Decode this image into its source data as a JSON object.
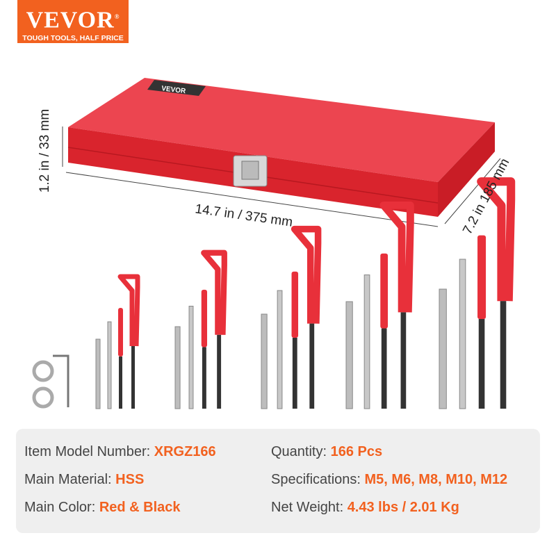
{
  "brand": {
    "name": "VEVOR",
    "registered": "®",
    "tagline": "TOUGH TOOLS, HALF PRICE",
    "color": "#f2611f"
  },
  "case": {
    "color": "#e8303a",
    "lid_label": "VEVOR"
  },
  "dimensions": {
    "height": "1.2 in / 33 mm",
    "length": "14.7 in / 375 mm",
    "width": "7.2 in 185 mm"
  },
  "tool_groups": [
    "M5",
    "M6",
    "M8",
    "M10",
    "M12"
  ],
  "specs": {
    "model": {
      "label": "Item Model Number: ",
      "value": "XRGZ166"
    },
    "material": {
      "label": "Main Material: ",
      "value": "HSS"
    },
    "color": {
      "label": "Main Color: ",
      "value": "Red & Black"
    },
    "quantity": {
      "label": "Quantity: ",
      "value": "166 Pcs"
    },
    "specifications": {
      "label": "Specifications: ",
      "value": "M5, M6, M8, M10, M12"
    },
    "weight": {
      "label": "Net Weight: ",
      "value": "4.43 lbs / 2.01 Kg"
    }
  }
}
